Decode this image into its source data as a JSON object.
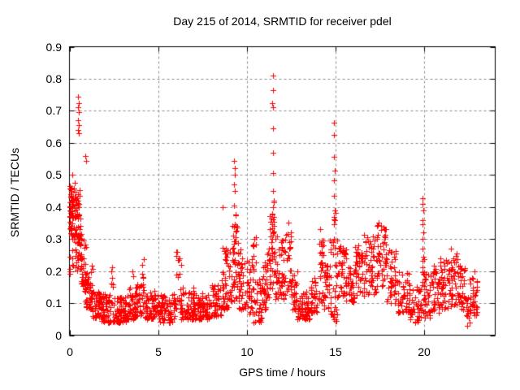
{
  "chart_data": {
    "type": "scatter",
    "title": "Day 215 of 2014, SRMTID for receiver pdel",
    "xlabel": "GPS time / hours",
    "ylabel": "SRMTID / TECUs",
    "xlim": [
      0,
      24
    ],
    "ylim": [
      0,
      0.9
    ],
    "xticks": [
      0,
      5,
      10,
      15,
      20
    ],
    "xtick_labels": [
      "0",
      "5",
      "10",
      "15",
      "20"
    ],
    "yticks": [
      0,
      0.1,
      0.2,
      0.3,
      0.4,
      0.5,
      0.6,
      0.7,
      0.8,
      0.9
    ],
    "ytick_labels": [
      "0",
      "0.1",
      "0.2",
      "0.3",
      "0.4",
      "0.5",
      "0.6",
      "0.7",
      "0.8",
      "0.9"
    ],
    "grid": true,
    "legend": "none",
    "marker": {
      "shape": "plus",
      "color": "#ff0000",
      "size": 7
    },
    "colors": {
      "grid": "#8c8c8c",
      "axis": "#000000",
      "text": "#000000",
      "background": "#ffffff"
    },
    "seed": 20140215,
    "peak_points": [
      [
        0.18,
        0.5
      ],
      [
        0.3,
        0.475
      ],
      [
        0.5,
        0.745
      ],
      [
        0.51,
        0.725
      ],
      [
        0.5,
        0.71
      ],
      [
        0.52,
        0.695
      ],
      [
        0.49,
        0.67
      ],
      [
        0.51,
        0.655
      ],
      [
        0.5,
        0.64
      ],
      [
        0.53,
        0.63
      ],
      [
        0.9,
        0.56
      ],
      [
        0.93,
        0.545
      ],
      [
        3.55,
        0.2
      ],
      [
        3.6,
        0.185
      ],
      [
        6.08,
        0.26
      ],
      [
        6.12,
        0.235
      ],
      [
        6.3,
        0.22
      ],
      [
        8.62,
        0.4
      ],
      [
        9.28,
        0.545
      ],
      [
        9.3,
        0.52
      ],
      [
        9.32,
        0.5
      ],
      [
        9.28,
        0.47
      ],
      [
        9.31,
        0.45
      ],
      [
        9.29,
        0.405
      ],
      [
        11.46,
        0.81
      ],
      [
        11.47,
        0.765
      ],
      [
        11.45,
        0.725
      ],
      [
        11.48,
        0.71
      ],
      [
        11.47,
        0.645
      ],
      [
        11.46,
        0.57
      ],
      [
        11.47,
        0.505
      ],
      [
        11.48,
        0.45
      ],
      [
        11.46,
        0.4
      ],
      [
        12.35,
        0.35
      ],
      [
        14.15,
        0.33
      ],
      [
        14.92,
        0.664
      ],
      [
        14.93,
        0.624
      ],
      [
        14.92,
        0.556
      ],
      [
        14.94,
        0.514
      ],
      [
        14.93,
        0.483
      ],
      [
        14.92,
        0.434
      ],
      [
        14.94,
        0.39
      ],
      [
        14.93,
        0.345
      ],
      [
        17.45,
        0.35
      ],
      [
        17.55,
        0.34
      ],
      [
        19.92,
        0.426
      ],
      [
        19.91,
        0.41
      ],
      [
        19.93,
        0.39
      ],
      [
        19.92,
        0.36
      ],
      [
        19.91,
        0.345
      ],
      [
        19.93,
        0.32
      ],
      [
        19.92,
        0.3
      ],
      [
        19.91,
        0.27
      ],
      [
        19.93,
        0.245
      ],
      [
        20.9,
        0.24
      ],
      [
        21.5,
        0.27
      ],
      [
        22.85,
        0.2
      ]
    ],
    "cloud_bands": [
      [
        0.0,
        0.05,
        0.18,
        0.46,
        12,
        1
      ],
      [
        0.0,
        0.15,
        0.33,
        0.47,
        25,
        1
      ],
      [
        0.1,
        0.4,
        0.3,
        0.47,
        40,
        1
      ],
      [
        0.4,
        0.65,
        0.28,
        0.46,
        35,
        1
      ],
      [
        0.15,
        0.7,
        0.2,
        0.32,
        30,
        1.2
      ],
      [
        0.6,
        0.95,
        0.13,
        0.3,
        40,
        1.2
      ],
      [
        0.9,
        1.3,
        0.08,
        0.22,
        45,
        1.4
      ],
      [
        1.3,
        1.8,
        0.05,
        0.14,
        50,
        1.4
      ],
      [
        1.8,
        2.32,
        0.04,
        0.13,
        55,
        1.5
      ],
      [
        2.35,
        2.45,
        0.09,
        0.22,
        10,
        1
      ],
      [
        2.45,
        3.2,
        0.04,
        0.12,
        70,
        1.5
      ],
      [
        3.2,
        3.7,
        0.05,
        0.15,
        50,
        1.5
      ],
      [
        3.7,
        4.05,
        0.06,
        0.16,
        35,
        1.5
      ],
      [
        4.05,
        4.2,
        0.09,
        0.24,
        12,
        1
      ],
      [
        4.2,
        5.0,
        0.05,
        0.14,
        70,
        1.5
      ],
      [
        5.0,
        5.95,
        0.04,
        0.13,
        75,
        1.5
      ],
      [
        5.95,
        6.25,
        0.07,
        0.26,
        16,
        1.2
      ],
      [
        6.25,
        7.0,
        0.05,
        0.15,
        65,
        1.5
      ],
      [
        7.0,
        8.0,
        0.05,
        0.13,
        80,
        1.5
      ],
      [
        8.0,
        8.6,
        0.06,
        0.16,
        50,
        1.5
      ],
      [
        8.6,
        9.0,
        0.08,
        0.28,
        40,
        1.3
      ],
      [
        9.0,
        9.5,
        0.1,
        0.34,
        45,
        1.2
      ],
      [
        9.1,
        9.4,
        0.25,
        0.42,
        10,
        1
      ],
      [
        9.5,
        10.0,
        0.08,
        0.28,
        40,
        1.3
      ],
      [
        10.0,
        10.25,
        0.06,
        0.24,
        22,
        1.4
      ],
      [
        10.25,
        10.55,
        0.04,
        0.31,
        30,
        1.3
      ],
      [
        10.55,
        10.9,
        0.04,
        0.18,
        30,
        1.5
      ],
      [
        10.9,
        11.25,
        0.08,
        0.28,
        35,
        1.2
      ],
      [
        11.25,
        11.6,
        0.14,
        0.38,
        40,
        1.1
      ],
      [
        11.4,
        11.55,
        0.2,
        0.42,
        8,
        1
      ],
      [
        11.6,
        12.1,
        0.11,
        0.31,
        45,
        1.3
      ],
      [
        12.1,
        12.55,
        0.12,
        0.33,
        35,
        1.2
      ],
      [
        12.55,
        12.85,
        0.08,
        0.2,
        25,
        1.4
      ],
      [
        12.85,
        13.6,
        0.05,
        0.14,
        60,
        1.5
      ],
      [
        13.6,
        14.0,
        0.07,
        0.18,
        35,
        1.4
      ],
      [
        14.0,
        14.35,
        0.1,
        0.3,
        32,
        1.2
      ],
      [
        14.35,
        14.65,
        0.08,
        0.22,
        25,
        1.3
      ],
      [
        14.65,
        15.1,
        0.04,
        0.3,
        40,
        1.3
      ],
      [
        14.85,
        15.0,
        0.2,
        0.39,
        6,
        1
      ],
      [
        15.1,
        15.6,
        0.12,
        0.28,
        40,
        1
      ],
      [
        15.6,
        16.05,
        0.1,
        0.25,
        35,
        1.2
      ],
      [
        16.05,
        16.6,
        0.12,
        0.28,
        45,
        1.1
      ],
      [
        16.6,
        17.3,
        0.12,
        0.32,
        55,
        1
      ],
      [
        17.3,
        17.9,
        0.14,
        0.35,
        50,
        1
      ],
      [
        17.9,
        18.4,
        0.1,
        0.27,
        40,
        1.2
      ],
      [
        18.4,
        19.2,
        0.07,
        0.2,
        50,
        1.4
      ],
      [
        19.2,
        19.85,
        0.04,
        0.15,
        45,
        1.4
      ],
      [
        19.88,
        19.98,
        0.05,
        0.24,
        12,
        1
      ],
      [
        19.95,
        20.35,
        0.05,
        0.2,
        30,
        1.4
      ],
      [
        20.35,
        20.9,
        0.07,
        0.22,
        40,
        1.3
      ],
      [
        20.9,
        21.4,
        0.08,
        0.24,
        40,
        1.3
      ],
      [
        21.4,
        21.9,
        0.09,
        0.26,
        40,
        1.2
      ],
      [
        21.9,
        22.3,
        0.08,
        0.22,
        35,
        1.3
      ],
      [
        22.3,
        22.55,
        0.02,
        0.12,
        18,
        1.2
      ],
      [
        22.55,
        23.0,
        0.06,
        0.19,
        35,
        1.3
      ]
    ]
  }
}
